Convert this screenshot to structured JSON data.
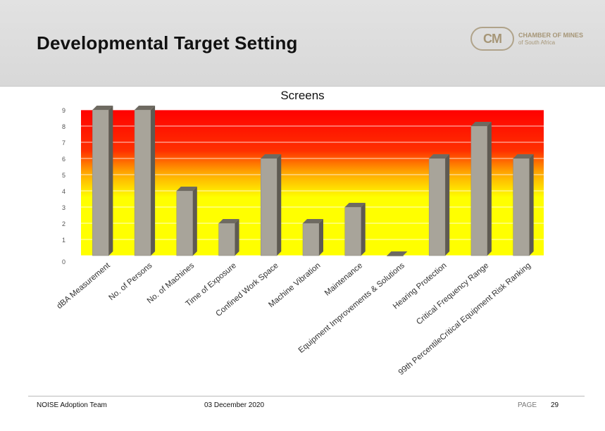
{
  "slide": {
    "title": "Developmental Target Setting"
  },
  "logo": {
    "mark": "CM",
    "line1": "CHAMBER OF MINES",
    "line2": "of South Africa"
  },
  "footer": {
    "team": "NOISE Adoption Team",
    "date": "03 December 2020",
    "page_label": "PAGE",
    "page_number": "29"
  },
  "chart_data": {
    "type": "bar",
    "title": "Screens",
    "categories": [
      "dBA Measurement",
      "No. of Persons",
      "No. of Machines",
      "Time of Exposure",
      "Confined Work Space",
      "Machine Vibration",
      "Maintenance",
      "Equipment Improvements & Solutions",
      "Hearing Protection",
      "Critical Frequency Range",
      "99th PercentileCritical Equipment Risk Ranking"
    ],
    "values": [
      9,
      9,
      4,
      2,
      6,
      2,
      3,
      0,
      6,
      8,
      6
    ],
    "ylim": [
      0,
      9
    ],
    "yticks": [
      0,
      1,
      2,
      3,
      4,
      5,
      6,
      7,
      8,
      9
    ],
    "grid": true,
    "colors": {
      "bar_front": "#a8a49a",
      "bar_side": "#5e5a52",
      "bar_top": "#6e6a61",
      "band_low": "#ffff00",
      "band_mid": "#ffa000",
      "band_high": "#ff0000"
    }
  }
}
